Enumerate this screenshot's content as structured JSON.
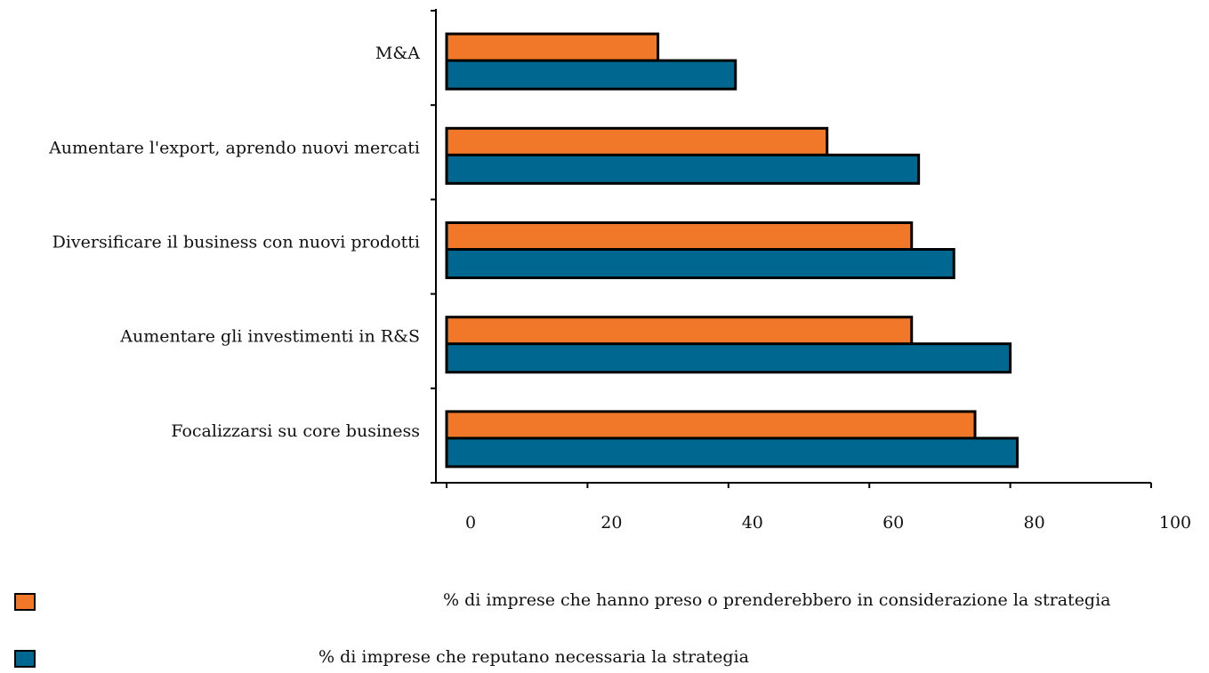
{
  "chart_data": {
    "type": "bar",
    "orientation": "horizontal",
    "categories": [
      "M&A",
      "Aumentare l'export, aprendo nuovi mercati",
      "Diversificare il business con nuovi prodotti",
      "Aumentare gli investimenti in R&S",
      "Focalizzarsi su core business"
    ],
    "series": [
      {
        "name": "% di imprese che hanno preso o prenderebbero in considerazione la strategia",
        "color": "#F07828",
        "values": [
          30,
          54,
          66,
          66,
          75
        ]
      },
      {
        "name": "% di imprese che reputano necessaria la strategia",
        "color": "#006890",
        "values": [
          41,
          67,
          72,
          80,
          81
        ]
      }
    ],
    "xlim": [
      0,
      100
    ],
    "xticks": [
      "0",
      "20",
      "40",
      "60",
      "80",
      "100"
    ],
    "grid": false,
    "legend_position": "bottom"
  }
}
